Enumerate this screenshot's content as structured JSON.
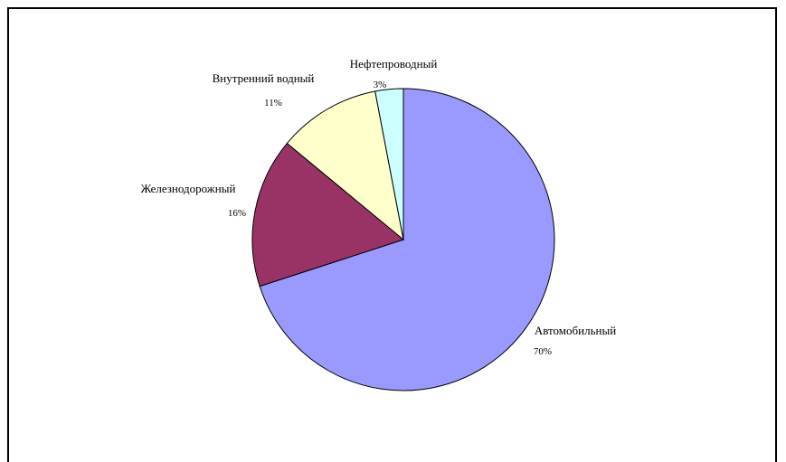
{
  "chart_data": {
    "type": "pie",
    "title": "",
    "slices": [
      {
        "label": "Автомобильный",
        "value": 70,
        "value_label": "70%",
        "color": "#9999ff"
      },
      {
        "label": "Железнодорожный",
        "value": 16,
        "value_label": "16%",
        "color": "#993366"
      },
      {
        "label": "Внутренний водный",
        "value": 11,
        "value_label": "11%",
        "color": "#ffffcc"
      },
      {
        "label": "Нефтепроводный",
        "value": 3,
        "value_label": "3%",
        "color": "#ccffff"
      }
    ],
    "start_angle_deg": 0,
    "direction": "clockwise",
    "legend": "none"
  }
}
